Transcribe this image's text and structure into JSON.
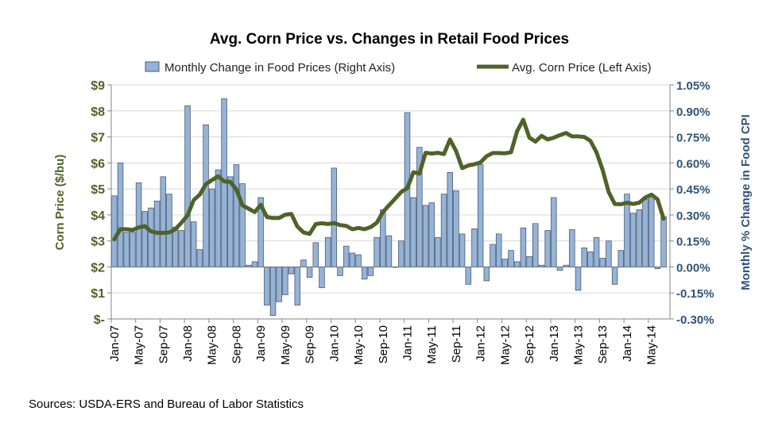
{
  "chart_data": {
    "type": "bar+line",
    "title": "Avg. Corn Price vs. Changes in Retail Food Prices",
    "source": "Sources: USDA-ERS and Bureau of Labor Statistics",
    "ylabel_left": "Corn Price ($/bu)",
    "ylabel_right": "Monthly % Change in Food CPI",
    "ylim_left": [
      0,
      9
    ],
    "ylim_right": [
      -0.3,
      1.05
    ],
    "left_ticks": [
      "$-",
      "$1",
      "$2",
      "$3",
      "$4",
      "$5",
      "$6",
      "$7",
      "$8",
      "$9"
    ],
    "right_ticks": [
      "-0.30%",
      "-0.15%",
      "0.00%",
      "0.15%",
      "0.30%",
      "0.45%",
      "0.60%",
      "0.75%",
      "0.90%",
      "1.05%"
    ],
    "x_tick_labels": [
      "Jan-07",
      "May-07",
      "Sep-07",
      "Jan-08",
      "May-08",
      "Sep-08",
      "Jan-09",
      "May-09",
      "Sep-09",
      "Jan-10",
      "May-10",
      "Sep-10",
      "Jan-11",
      "May-11",
      "Sep-11",
      "Jan-12",
      "May-12",
      "Sep-12",
      "Jan-13",
      "May-13",
      "Sep-13",
      "Jan-14",
      "May-14"
    ],
    "x_start": "Jan-07",
    "x_end": "Jul-14",
    "grid": true,
    "legend_position": "top",
    "colors": {
      "bars": "#95b3d7",
      "bar_border": "#4a5a70",
      "line": "#4f6228",
      "left_axis": "#4f6228",
      "right_axis": "#2f5377"
    },
    "series": [
      {
        "name": "Monthly Change in Food Prices (Right Axis)",
        "type": "bar",
        "axis": "right",
        "values": [
          0.41,
          0.6,
          0.2,
          0.2,
          0.485,
          0.32,
          0.34,
          0.38,
          0.52,
          0.42,
          0.23,
          0.21,
          0.93,
          0.26,
          0.1,
          0.82,
          0.45,
          0.56,
          0.97,
          0.52,
          0.59,
          0.48,
          0.01,
          0.03,
          0.4,
          -0.22,
          -0.28,
          -0.2,
          -0.16,
          -0.04,
          -0.22,
          0.04,
          -0.06,
          0.14,
          -0.12,
          0.17,
          0.57,
          -0.05,
          0.12,
          0.08,
          0.07,
          -0.07,
          -0.05,
          0.17,
          0.33,
          0.18,
          0.0,
          0.15,
          0.89,
          0.4,
          0.69,
          0.355,
          0.37,
          0.17,
          0.42,
          0.545,
          0.44,
          0.19,
          -0.1,
          0.22,
          0.59,
          -0.08,
          0.13,
          0.19,
          0.045,
          0.095,
          0.03,
          0.225,
          0.06,
          0.25,
          0.01,
          0.21,
          0.4,
          -0.02,
          0.01,
          0.215,
          -0.135,
          0.11,
          0.087,
          0.17,
          0.05,
          0.15,
          -0.1,
          0.095,
          0.42,
          0.31,
          0.33,
          0.39,
          0.42,
          -0.01,
          0.29
        ]
      },
      {
        "name": "Avg. Corn Price (Left Axis)",
        "type": "line",
        "axis": "left",
        "values": [
          3.06,
          3.45,
          3.45,
          3.42,
          3.52,
          3.57,
          3.37,
          3.31,
          3.31,
          3.33,
          3.45,
          3.7,
          3.98,
          4.57,
          4.78,
          5.18,
          5.34,
          5.49,
          5.29,
          5.27,
          4.98,
          4.37,
          4.24,
          4.11,
          4.39,
          3.92,
          3.88,
          3.88,
          4.01,
          4.04,
          3.55,
          3.33,
          3.27,
          3.65,
          3.68,
          3.65,
          3.69,
          3.61,
          3.58,
          3.45,
          3.5,
          3.45,
          3.53,
          3.7,
          4.11,
          4.37,
          4.62,
          4.88,
          5.03,
          5.64,
          5.59,
          6.39,
          6.36,
          6.39,
          6.34,
          6.9,
          6.46,
          5.8,
          5.9,
          5.95,
          6.02,
          6.26,
          6.38,
          6.38,
          6.37,
          6.41,
          7.22,
          7.66,
          6.97,
          6.82,
          7.04,
          6.9,
          6.97,
          7.07,
          7.15,
          7.02,
          7.02,
          7.0,
          6.85,
          6.41,
          5.74,
          4.88,
          4.42,
          4.41,
          4.47,
          4.42,
          4.47,
          4.67,
          4.78,
          4.6,
          3.85
        ]
      }
    ]
  }
}
